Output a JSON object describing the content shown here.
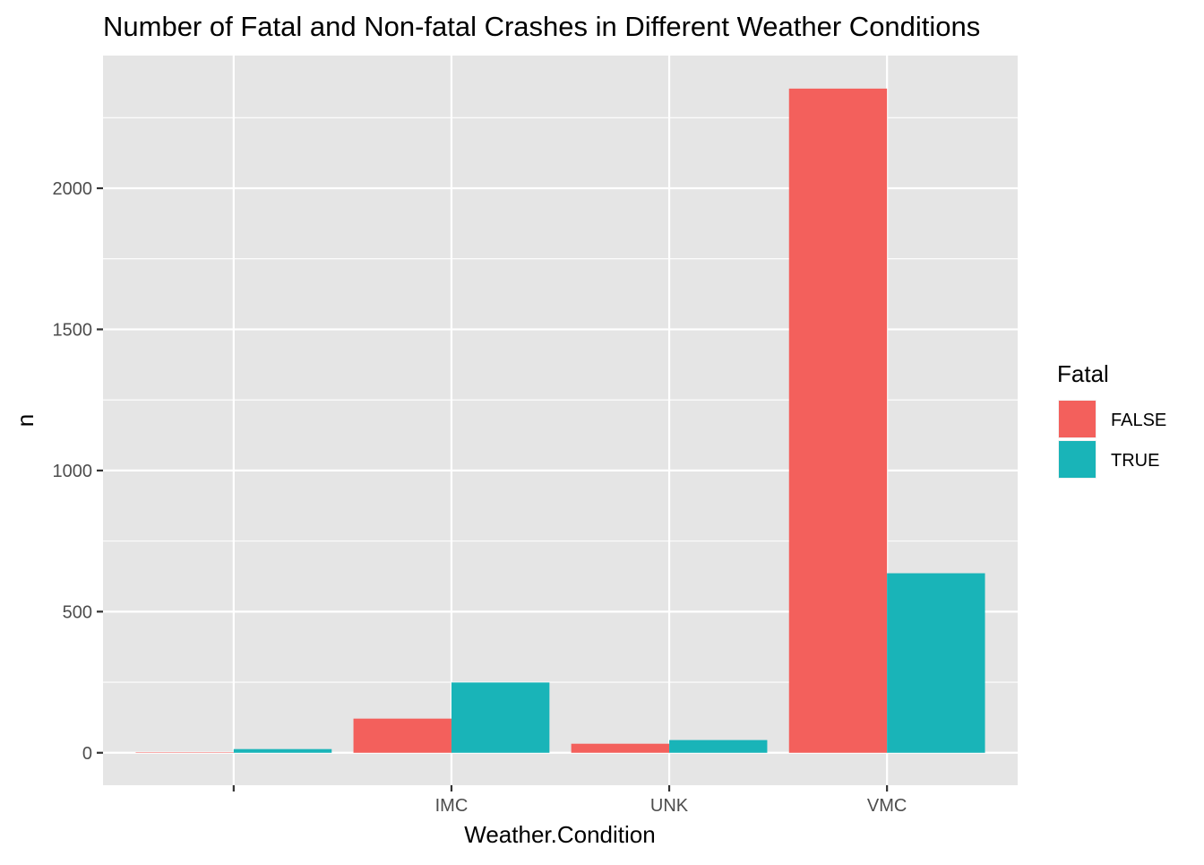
{
  "chart_data": {
    "type": "bar",
    "title": "Number of Fatal and Non-fatal Crashes in Different Weather Conditions",
    "xlabel": "Weather.Condition",
    "ylabel": "n",
    "categories": [
      "",
      "IMC",
      "UNK",
      "VMC"
    ],
    "series": [
      {
        "name": "FALSE",
        "values": [
          1,
          121,
          32,
          2353
        ]
      },
      {
        "name": "TRUE",
        "values": [
          13,
          249,
          45,
          636
        ]
      }
    ],
    "ylim": [
      -115,
      2470
    ],
    "yticks": [
      0,
      500,
      1000,
      1500,
      2000
    ],
    "grid": true,
    "legend": {
      "title": "Fatal",
      "position": "right"
    }
  },
  "colors": {
    "panel_background": "#e5e5e5",
    "grid": "#ffffff",
    "series": [
      "#f3605c",
      "#19b4b8"
    ]
  }
}
